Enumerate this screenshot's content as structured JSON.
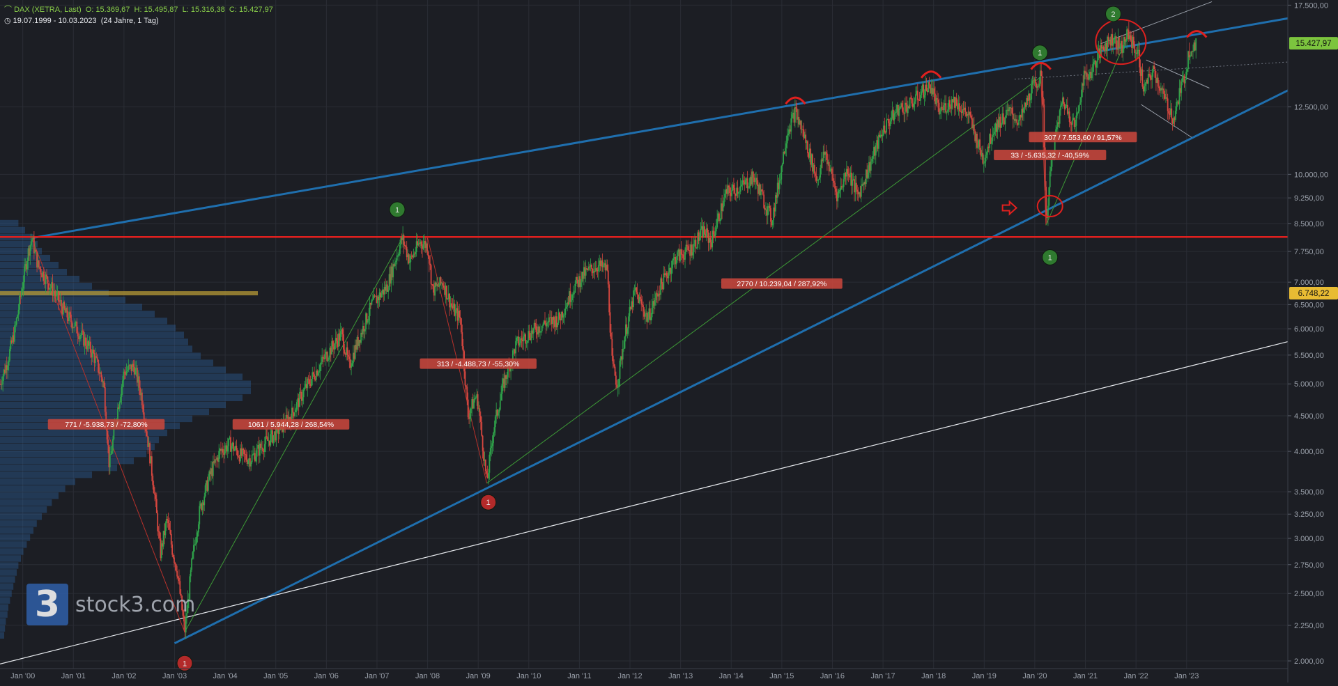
{
  "header": {
    "symbol": "DAX (XETRA, Last)",
    "open": "O: 15.369,67",
    "high": "H: 15.495,87",
    "low": "L: 15.316,38",
    "close": "C: 15.427,97",
    "range": "19.07.1999 - 10.03.2023",
    "period": "(24 Jahre, 1 Tag)"
  },
  "watermark": {
    "logo_glyph": "3",
    "text": "stock3.com"
  },
  "colors": {
    "background": "#1c1e24",
    "candle_up": "#2fa34a",
    "candle_down": "#d7473f",
    "trend_blue": "#1f6fae",
    "resistance_red": "#e0201e",
    "price_badge": "#7cc43e",
    "marker_badge": "#e8bb33"
  },
  "chart_data": {
    "type": "candlestick-line",
    "scale": "log",
    "ylim": [
      1950,
      17800
    ],
    "y_ticks": [
      "17.500,00",
      "12.500,00",
      "10.000,00",
      "9.250,00",
      "8.500,00",
      "7.750,00",
      "7.000,00",
      "6.500,00",
      "6.000,00",
      "5.500,00",
      "5.000,00",
      "4.500,00",
      "4.000,00",
      "3.500,00",
      "3.250,00",
      "3.000,00",
      "2.750,00",
      "2.500,00",
      "2.250,00",
      "2.000,00"
    ],
    "y_tick_values": [
      17500,
      12500,
      10000,
      9250,
      8500,
      7750,
      7000,
      6500,
      6000,
      5500,
      5000,
      4500,
      4000,
      3500,
      3250,
      3000,
      2750,
      2500,
      2250,
      2000
    ],
    "x_ticks": [
      "Jan '00",
      "Jan '01",
      "Jan '02",
      "Jan '03",
      "Jan '04",
      "Jan '05",
      "Jan '06",
      "Jan '07",
      "Jan '08",
      "Jan '09",
      "Jan '10",
      "Jan '11",
      "Jan '12",
      "Jan '13",
      "Jan '14",
      "Jan '15",
      "Jan '16",
      "Jan '17",
      "Jan '18",
      "Jan '19",
      "Jan '20",
      "Jan '21",
      "Jan '22",
      "Jan '23"
    ],
    "x_tick_years": [
      2000,
      2001,
      2002,
      2003,
      2004,
      2005,
      2006,
      2007,
      2008,
      2009,
      2010,
      2011,
      2012,
      2013,
      2014,
      2015,
      2016,
      2017,
      2018,
      2019,
      2020,
      2021,
      2022,
      2023
    ],
    "xlim": [
      1999.55,
      2025.0
    ],
    "price_path": [
      [
        1999.55,
        5000
      ],
      [
        1999.7,
        5400
      ],
      [
        1999.85,
        6000
      ],
      [
        2000.0,
        7000
      ],
      [
        2000.1,
        7700
      ],
      [
        2000.18,
        8100
      ],
      [
        2000.3,
        7400
      ],
      [
        2000.5,
        7000
      ],
      [
        2000.7,
        6600
      ],
      [
        2000.85,
        6300
      ],
      [
        2001.0,
        6100
      ],
      [
        2001.2,
        5800
      ],
      [
        2001.4,
        5500
      ],
      [
        2001.6,
        5000
      ],
      [
        2001.71,
        3800
      ],
      [
        2001.85,
        4500
      ],
      [
        2002.0,
        5200
      ],
      [
        2002.2,
        5300
      ],
      [
        2002.35,
        4800
      ],
      [
        2002.5,
        4000
      ],
      [
        2002.6,
        3500
      ],
      [
        2002.72,
        2850
      ],
      [
        2002.85,
        3200
      ],
      [
        2002.95,
        2900
      ],
      [
        2003.05,
        2700
      ],
      [
        2003.2,
        2200
      ],
      [
        2003.35,
        2800
      ],
      [
        2003.5,
        3300
      ],
      [
        2003.7,
        3700
      ],
      [
        2003.9,
        4000
      ],
      [
        2004.1,
        4100
      ],
      [
        2004.3,
        3950
      ],
      [
        2004.5,
        3900
      ],
      [
        2004.7,
        4050
      ],
      [
        2005.0,
        4250
      ],
      [
        2005.3,
        4500
      ],
      [
        2005.6,
        4950
      ],
      [
        2006.0,
        5500
      ],
      [
        2006.3,
        5900
      ],
      [
        2006.45,
        5300
      ],
      [
        2006.6,
        5700
      ],
      [
        2006.9,
        6500
      ],
      [
        2007.2,
        6900
      ],
      [
        2007.35,
        7500
      ],
      [
        2007.5,
        8100
      ],
      [
        2007.65,
        7500
      ],
      [
        2007.85,
        8000
      ],
      [
        2008.0,
        7900
      ],
      [
        2008.1,
        6800
      ],
      [
        2008.3,
        7000
      ],
      [
        2008.5,
        6400
      ],
      [
        2008.65,
        6200
      ],
      [
        2008.8,
        4500
      ],
      [
        2008.95,
        4800
      ],
      [
        2009.0,
        4700
      ],
      [
        2009.17,
        3600
      ],
      [
        2009.3,
        4300
      ],
      [
        2009.5,
        5000
      ],
      [
        2009.75,
        5700
      ],
      [
        2010.0,
        5900
      ],
      [
        2010.3,
        6100
      ],
      [
        2010.6,
        6200
      ],
      [
        2010.9,
        6900
      ],
      [
        2011.1,
        7200
      ],
      [
        2011.35,
        7400
      ],
      [
        2011.55,
        7300
      ],
      [
        2011.65,
        5300
      ],
      [
        2011.75,
        5000
      ],
      [
        2011.9,
        5900
      ],
      [
        2012.1,
        6800
      ],
      [
        2012.35,
        6200
      ],
      [
        2012.6,
        6900
      ],
      [
        2012.9,
        7600
      ],
      [
        2013.2,
        7800
      ],
      [
        2013.45,
        8300
      ],
      [
        2013.6,
        8000
      ],
      [
        2013.9,
        9400
      ],
      [
        2014.2,
        9600
      ],
      [
        2014.45,
        9900
      ],
      [
        2014.8,
        8600
      ],
      [
        2014.95,
        9800
      ],
      [
        2015.1,
        11500
      ],
      [
        2015.27,
        12300
      ],
      [
        2015.45,
        11300
      ],
      [
        2015.7,
        9800
      ],
      [
        2015.85,
        10800
      ],
      [
        2016.1,
        9300
      ],
      [
        2016.3,
        10200
      ],
      [
        2016.5,
        9300
      ],
      [
        2016.8,
        10600
      ],
      [
        2017.0,
        11600
      ],
      [
        2017.3,
        12400
      ],
      [
        2017.55,
        12600
      ],
      [
        2017.8,
        13200
      ],
      [
        2017.95,
        13400
      ],
      [
        2018.1,
        12300
      ],
      [
        2018.4,
        12800
      ],
      [
        2018.7,
        12100
      ],
      [
        2018.98,
        10500
      ],
      [
        2019.2,
        11700
      ],
      [
        2019.5,
        12300
      ],
      [
        2019.7,
        11900
      ],
      [
        2019.95,
        13300
      ],
      [
        2020.12,
        13800
      ],
      [
        2020.17,
        12500
      ],
      [
        2020.22,
        8500
      ],
      [
        2020.35,
        10800
      ],
      [
        2020.55,
        12800
      ],
      [
        2020.8,
        11700
      ],
      [
        2020.95,
        13700
      ],
      [
        2021.1,
        14000
      ],
      [
        2021.35,
        15300
      ],
      [
        2021.55,
        15700
      ],
      [
        2021.7,
        15200
      ],
      [
        2021.85,
        15900
      ],
      [
        2021.95,
        15300
      ],
      [
        2022.05,
        14800
      ],
      [
        2022.15,
        13200
      ],
      [
        2022.35,
        14100
      ],
      [
        2022.55,
        12900
      ],
      [
        2022.75,
        12000
      ],
      [
        2022.85,
        13000
      ],
      [
        2022.98,
        14000
      ],
      [
        2023.05,
        15100
      ],
      [
        2023.19,
        15427.97
      ]
    ],
    "lines": [
      {
        "name": "upper-channel-line",
        "color": "#1f6fae",
        "width": 3,
        "from": [
          2000.18,
          8100
        ],
        "to": [
          2025.0,
          16750
        ]
      },
      {
        "name": "lower-channel-line",
        "color": "#1f6fae",
        "width": 3,
        "from": [
          2003.0,
          2120
        ],
        "to": [
          2025.0,
          13200
        ]
      },
      {
        "name": "long-term-support-line",
        "color": "#e9ecf0",
        "width": 1.2,
        "from": [
          1999.55,
          1980
        ],
        "to": [
          2025.0,
          5750
        ]
      },
      {
        "name": "resistance-line",
        "color": "#e0201e",
        "width": 2.5,
        "from": [
          1999.55,
          8130
        ],
        "to": [
          2025.0,
          8130
        ]
      },
      {
        "name": "decline-2000-line",
        "color": "#b8312b",
        "width": 1,
        "from": [
          2000.18,
          8100
        ],
        "to": [
          2003.2,
          2200
        ]
      },
      {
        "name": "rally-2003-2007-line",
        "color": "#3d9a36",
        "width": 1,
        "from": [
          2003.2,
          2200
        ],
        "to": [
          2007.5,
          8100
        ]
      },
      {
        "name": "decline-2007-2009-line",
        "color": "#b8312b",
        "width": 1,
        "from": [
          2008.0,
          8100
        ],
        "to": [
          2009.17,
          3600
        ]
      },
      {
        "name": "rally-2009-2020-line",
        "color": "#3d9a36",
        "width": 1,
        "from": [
          2009.17,
          3600
        ],
        "to": [
          2020.12,
          13800
        ]
      },
      {
        "name": "covid-drop-line",
        "color": "#b8312b",
        "width": 1,
        "from": [
          2020.12,
          13800
        ],
        "to": [
          2020.22,
          8450
        ]
      },
      {
        "name": "covid-rally-line",
        "color": "#3d9a36",
        "width": 1,
        "from": [
          2020.22,
          8450
        ],
        "to": [
          2021.85,
          15900
        ]
      },
      {
        "name": "channel-2021-upper",
        "color": "#9aa0aa",
        "width": 1,
        "from": [
          2021.3,
          15400
        ],
        "to": [
          2023.5,
          17700
        ]
      },
      {
        "name": "wedge-2022-upper",
        "color": "#9aa0aa",
        "width": 1,
        "from": [
          2022.2,
          14600
        ],
        "to": [
          2023.45,
          13300
        ]
      },
      {
        "name": "wedge-2022-lower",
        "color": "#9aa0aa",
        "width": 1,
        "from": [
          2022.1,
          12600
        ],
        "to": [
          2023.1,
          11300
        ]
      },
      {
        "name": "dotted-guide-line",
        "color": "#707682",
        "width": 1,
        "dash": "2,3",
        "from": [
          2019.6,
          13700
        ],
        "to": [
          2025.0,
          14500
        ]
      }
    ],
    "annotations": [
      {
        "text": "771 / -5.938,73 / -72,80%",
        "x": 2001.65,
        "y": 4370
      },
      {
        "text": "1061 / 5.944,28 / 268,54%",
        "x": 2005.3,
        "y": 4370
      },
      {
        "text": "313 / -4.488,73 / -55,30%",
        "x": 2009.0,
        "y": 5340
      },
      {
        "text": "2770 / 10.239,04 / 287,92%",
        "x": 2015.0,
        "y": 6960
      },
      {
        "text": "33 / -5.635,32 / -40,59%",
        "x": 2020.3,
        "y": 10650
      },
      {
        "text": "307 / 7.553,60 / 91,57%",
        "x": 2020.95,
        "y": 11300
      }
    ],
    "markers": [
      {
        "label": "1",
        "x": 2003.2,
        "y": 1985,
        "color": "#b32a2a"
      },
      {
        "label": "1",
        "x": 2007.4,
        "y": 8900,
        "color": "#2f7a2f"
      },
      {
        "label": "1",
        "x": 2009.2,
        "y": 3380,
        "color": "#b32a2a"
      },
      {
        "label": "1",
        "x": 2020.1,
        "y": 14950,
        "color": "#2f7a2f"
      },
      {
        "label": "1",
        "x": 2020.3,
        "y": 7600,
        "color": "#2f7a2f"
      },
      {
        "label": "2",
        "x": 2021.55,
        "y": 17000,
        "color": "#2f7a2f"
      }
    ],
    "arcs": [
      [
        2015.27,
        12800
      ],
      [
        2017.95,
        13950
      ],
      [
        2020.12,
        14350
      ],
      [
        2023.2,
        15950
      ]
    ],
    "circles": [
      {
        "x": 2021.7,
        "y": 15500,
        "rx": 36,
        "ry": 32
      },
      {
        "x": 2020.3,
        "y": 9000,
        "rx": 18,
        "ry": 15
      }
    ],
    "arrow": {
      "x": 2019.5,
      "y": 8950
    },
    "current_price": {
      "value": 15427.97,
      "label": "15.427,97"
    },
    "marker_level": {
      "value": 6748.22,
      "label": "6.748,22"
    },
    "volume_profile": {
      "from": 2150,
      "to": 8600,
      "widths": [
        5,
        6,
        7,
        9,
        10,
        12,
        14,
        16,
        18,
        20,
        22,
        25,
        28,
        32,
        36,
        40,
        44,
        50,
        56,
        62,
        70,
        78,
        90,
        110,
        140,
        160,
        175,
        185,
        190,
        200,
        215,
        230,
        250,
        270,
        290,
        300,
        300,
        290,
        270,
        255,
        240,
        230,
        225,
        220,
        210,
        200,
        185,
        170,
        150,
        130,
        110,
        95,
        80,
        70,
        60,
        50,
        45,
        40,
        30,
        22
      ]
    }
  }
}
